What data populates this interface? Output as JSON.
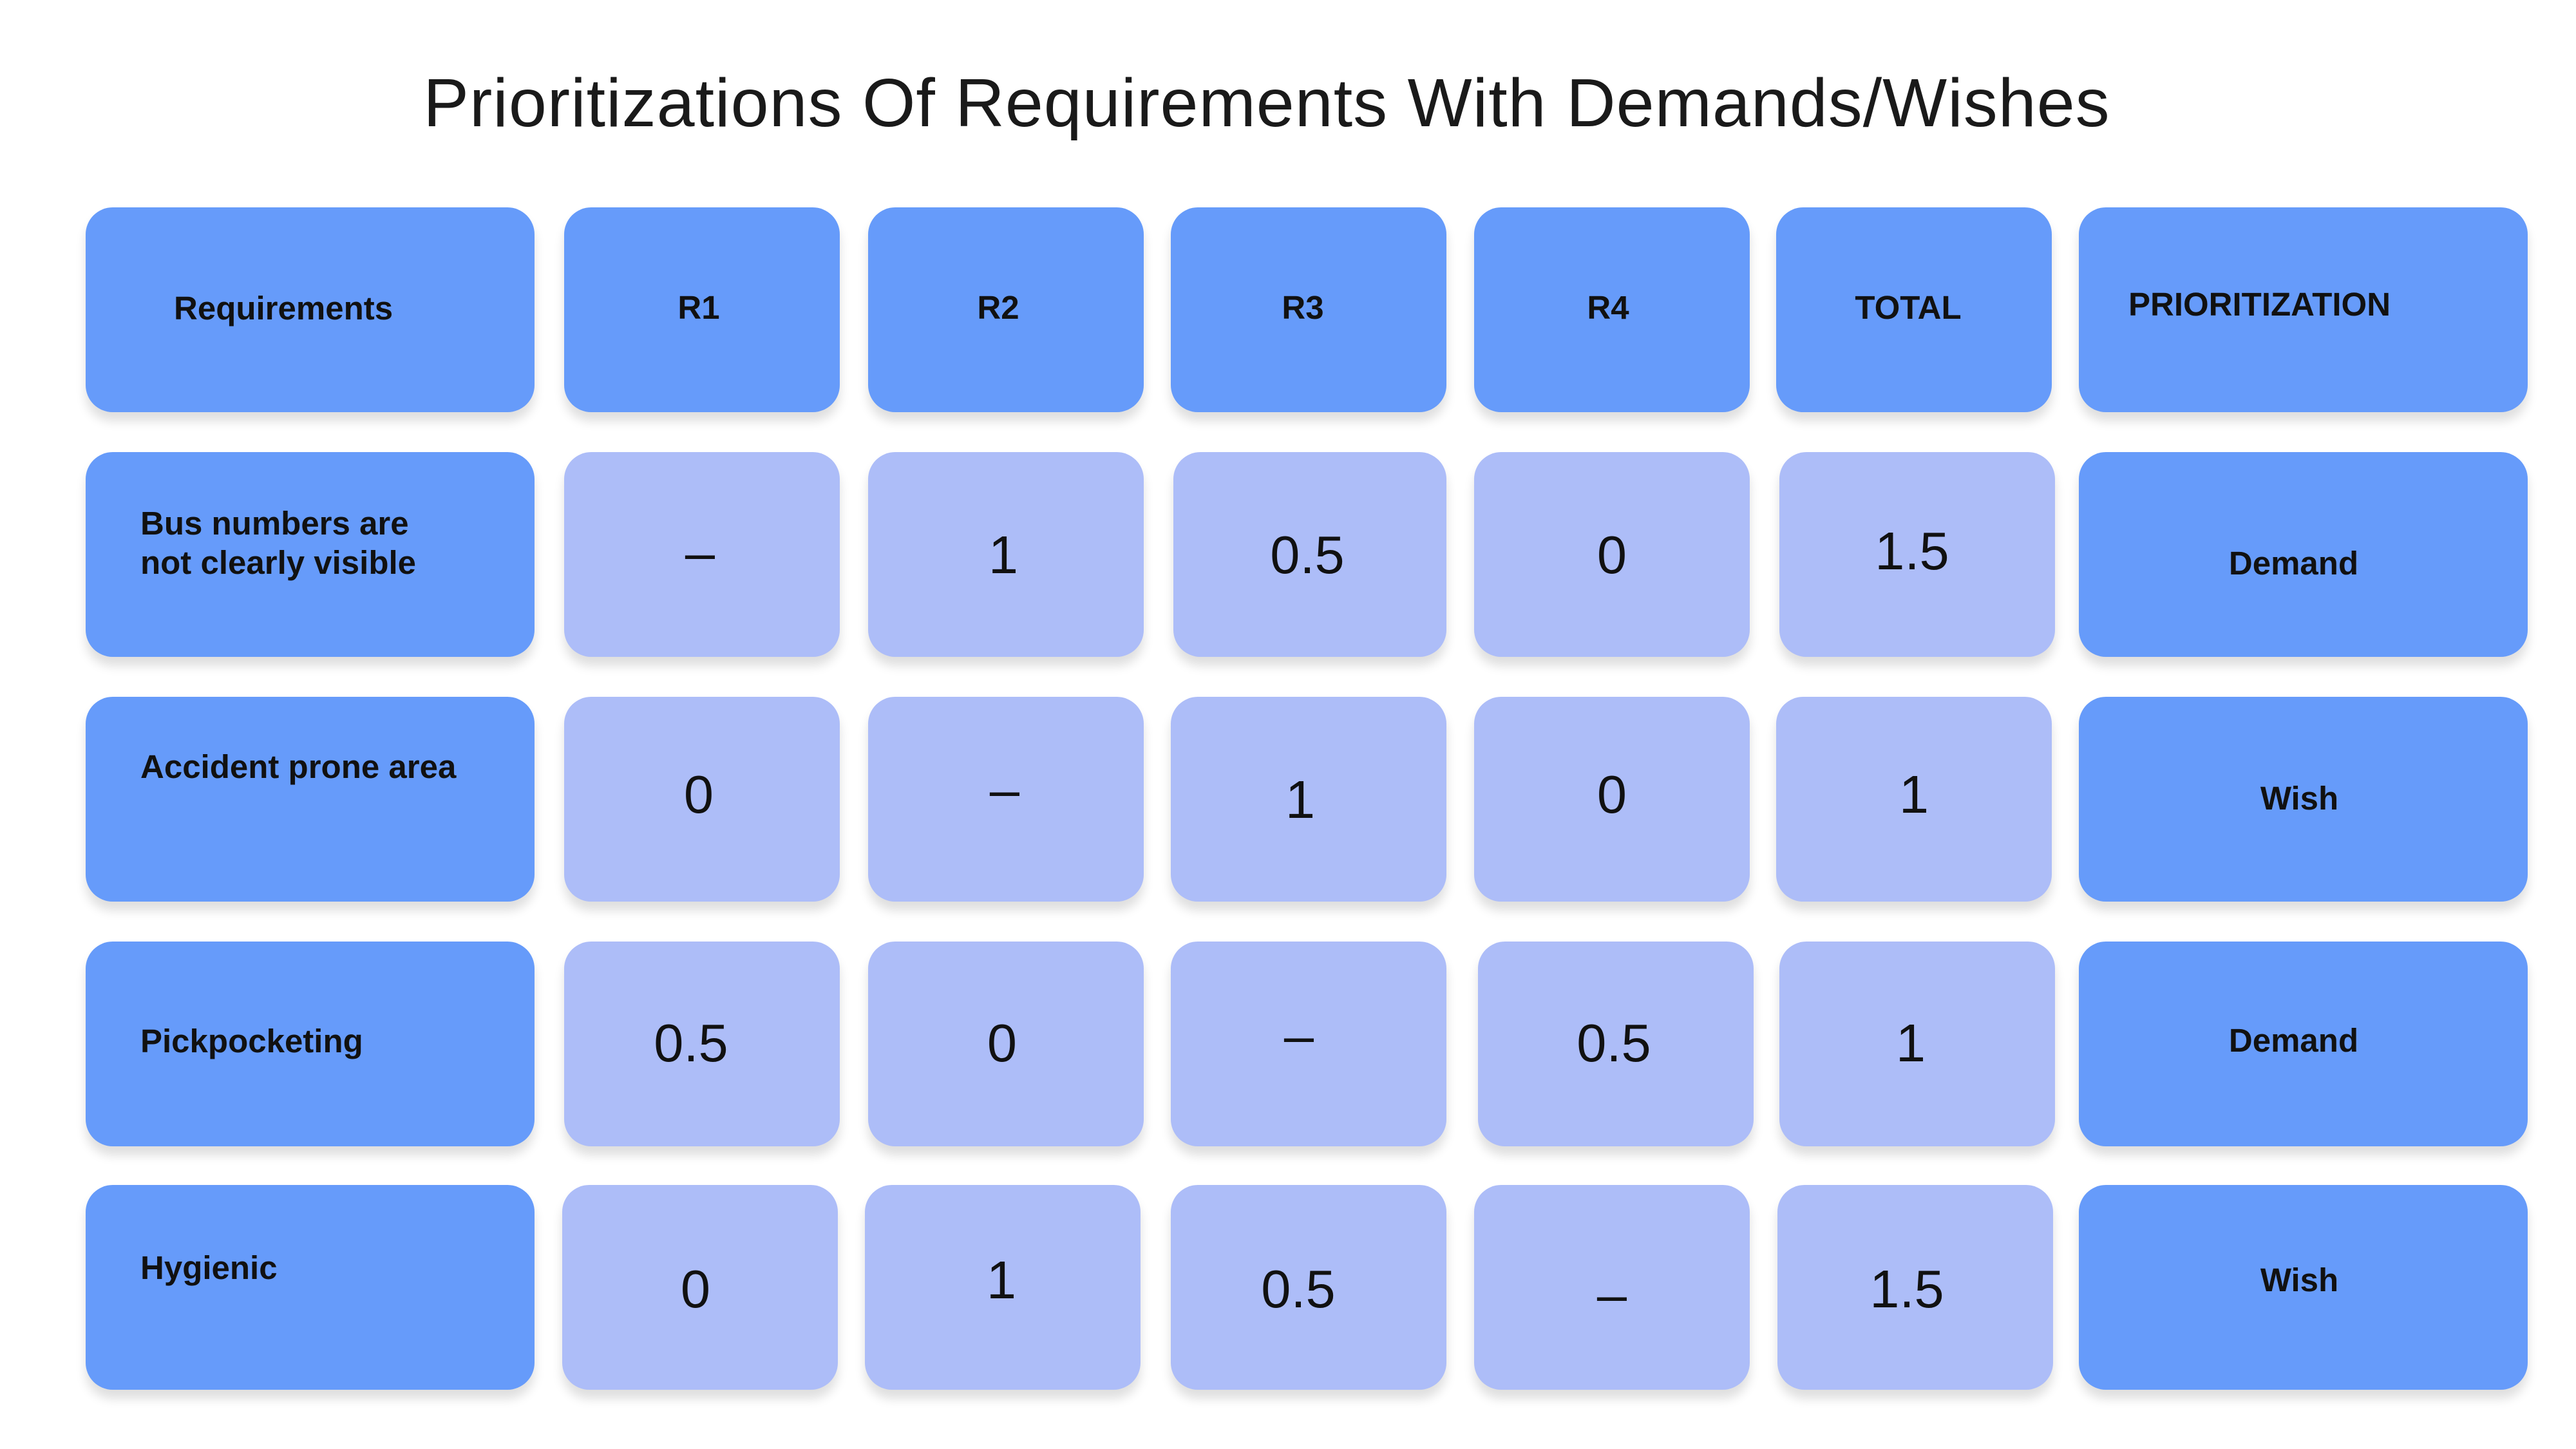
{
  "title": "Prioritizations Of Requirements With Demands/Wishes",
  "header": {
    "requirements": "Requirements",
    "r1": "R1",
    "r2": "R2",
    "r3": "R3",
    "r4": "R4",
    "total": "TOTAL",
    "prioritization": "PRIORITIZATION"
  },
  "rows": [
    {
      "req_line1": "Bus numbers are",
      "req_line2": "not clearly visible",
      "r1": "–",
      "r2": "1",
      "r3": "0.5",
      "r4": "0",
      "total": "1.5",
      "prioritization": "Demand"
    },
    {
      "req_line1": "Accident prone area",
      "r1": "0",
      "r2": "–",
      "r3": "1",
      "r4": "0",
      "total": "1",
      "prioritization": "Wish"
    },
    {
      "req_line1": "Pickpocketing",
      "r1": "0.5",
      "r2": "0",
      "r3": "–",
      "r4": "0.5",
      "total": "1",
      "prioritization": "Demand"
    },
    {
      "req_line1": "Hygienic",
      "r1": "0",
      "r2": "1",
      "r3": "0.5",
      "r4": "–",
      "total": "1.5",
      "prioritization": "Wish"
    }
  ],
  "colors": {
    "header_cell": "#669BFA",
    "value_cell": "#ADBDF8"
  }
}
